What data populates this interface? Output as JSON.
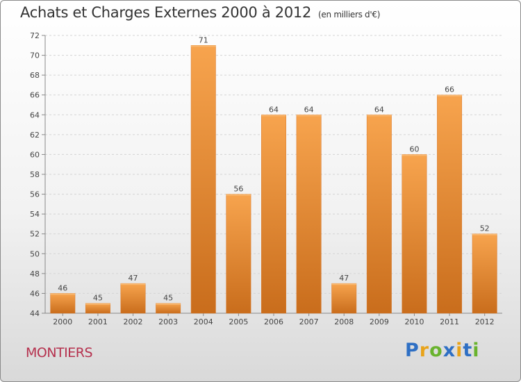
{
  "title": "Achats et Charges Externes 2000 à 2012",
  "unit": "(en milliers d'€)",
  "commune": "MONTIERS",
  "logo": {
    "letters": [
      {
        "ch": "P",
        "color": "#2e6fc4"
      },
      {
        "ch": "r",
        "color": "#e8a31a"
      },
      {
        "ch": "o",
        "color": "#69b32e"
      },
      {
        "ch": "x",
        "color": "#2e6fc4"
      },
      {
        "ch": "i",
        "color": "#e8a31a"
      },
      {
        "ch": "t",
        "color": "#2e6fc4"
      },
      {
        "ch": "i",
        "color": "#69b32e"
      }
    ]
  },
  "colors": {
    "bar": "#ee8a35",
    "bar_light": "#f7a44e",
    "bar_dark": "#c96d1c"
  },
  "chart_data": {
    "type": "bar",
    "title": "Achats et Charges Externes 2000 à 2012",
    "categories": [
      "2000",
      "2001",
      "2002",
      "2003",
      "2004",
      "2005",
      "2006",
      "2007",
      "2008",
      "2009",
      "2010",
      "2011",
      "2012"
    ],
    "values": [
      46,
      45,
      47,
      45,
      71,
      56,
      64,
      64,
      47,
      64,
      60,
      66,
      52
    ],
    "ylim": [
      44,
      72
    ],
    "yticks": [
      44,
      46,
      48,
      50,
      52,
      54,
      56,
      58,
      60,
      62,
      64,
      66,
      68,
      70,
      72
    ],
    "grid": true
  }
}
